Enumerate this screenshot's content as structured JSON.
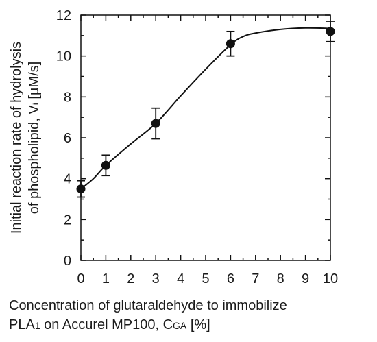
{
  "chart_data": {
    "type": "scatter",
    "x": [
      0,
      1,
      3,
      6,
      10
    ],
    "y": [
      3.5,
      4.65,
      6.7,
      10.6,
      11.2
    ],
    "y_err": [
      0.4,
      0.5,
      0.75,
      0.6,
      0.5
    ],
    "fit_curve": [
      [
        0,
        3.5
      ],
      [
        0.5,
        4.0
      ],
      [
        1,
        4.65
      ],
      [
        2,
        5.7
      ],
      [
        3,
        6.7
      ],
      [
        4,
        8.05
      ],
      [
        5,
        9.35
      ],
      [
        6,
        10.55
      ],
      [
        6.5,
        10.95
      ],
      [
        7,
        11.12
      ],
      [
        8,
        11.3
      ],
      [
        9,
        11.37
      ],
      [
        10,
        11.35
      ]
    ],
    "xlim": [
      0,
      10
    ],
    "ylim": [
      0,
      12
    ],
    "x_ticks": [
      "0",
      "1",
      "2",
      "3",
      "4",
      "5",
      "6",
      "7",
      "8",
      "9",
      "10"
    ],
    "y_ticks": [
      "0",
      "2",
      "4",
      "6",
      "8",
      "10",
      "12"
    ],
    "xlabel": {
      "line1": "Concentration of glutaraldehyde to immobilize",
      "line2_pre": "PLA",
      "line2_sub": "1",
      "line2_mid": " on Accurel MP100, C",
      "line2_sub2": "GA",
      "line2_post": " [%]"
    },
    "ylabel": {
      "line1": "Initial reaction rate of hydrolysis",
      "line2_pre": "of phospholipid, V",
      "line2_sub": "i",
      "line2_post": " [µM/s]"
    },
    "grid": false,
    "colors": {
      "marker": "#111111",
      "line": "#111111",
      "axis": "#111111"
    }
  }
}
